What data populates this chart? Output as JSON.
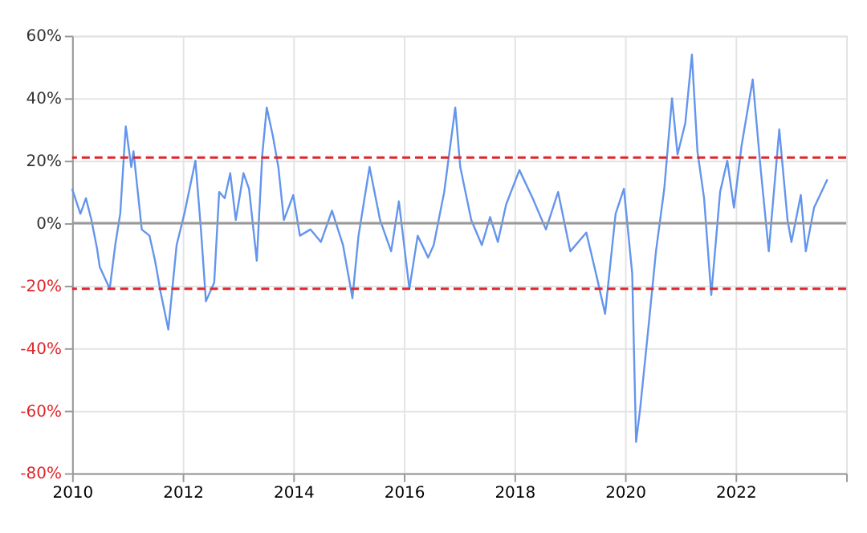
{
  "chart_data": {
    "type": "line",
    "x": [
      2010.0,
      2010.15,
      2010.25,
      2010.35,
      2010.45,
      2010.5,
      2010.68,
      2010.78,
      2010.87,
      2010.97,
      2011.07,
      2011.11,
      2011.26,
      2011.4,
      2011.5,
      2011.6,
      2011.74,
      2011.89,
      2012.03,
      2012.23,
      2012.33,
      2012.42,
      2012.57,
      2012.66,
      2012.76,
      2012.86,
      2012.96,
      2013.1,
      2013.2,
      2013.34,
      2013.44,
      2013.52,
      2013.63,
      2013.73,
      2013.83,
      2014.0,
      2014.12,
      2014.31,
      2014.5,
      2014.7,
      2014.9,
      2015.07,
      2015.18,
      2015.38,
      2015.57,
      2015.77,
      2015.91,
      2016.1,
      2016.25,
      2016.44,
      2016.54,
      2016.73,
      2016.93,
      2017.02,
      2017.22,
      2017.41,
      2017.56,
      2017.7,
      2017.85,
      2018.09,
      2018.33,
      2018.57,
      2018.79,
      2019.01,
      2019.3,
      2019.5,
      2019.64,
      2019.83,
      2019.98,
      2020.13,
      2020.2,
      2020.27,
      2020.42,
      2020.56,
      2020.71,
      2020.85,
      2020.95,
      2021.09,
      2021.21,
      2021.31,
      2021.43,
      2021.56,
      2021.72,
      2021.85,
      2021.97,
      2022.11,
      2022.31,
      2022.45,
      2022.6,
      2022.79,
      2022.94,
      2023.01,
      2023.18,
      2023.27,
      2023.42,
      2023.66
    ],
    "series": [
      {
        "color": "#6495ed",
        "values": [
          11,
          3,
          8,
          1,
          -8,
          -14,
          -21,
          -7,
          3,
          31,
          18,
          23,
          -2,
          -4,
          -12,
          -22,
          -34,
          -7,
          3,
          20,
          -2,
          -25,
          -19,
          10,
          8,
          16,
          1,
          16,
          11,
          -12,
          22,
          37,
          28,
          18,
          1,
          9,
          -4,
          -2,
          -6,
          4,
          -7,
          -24,
          -4,
          18,
          1,
          -9,
          7,
          -21,
          -4,
          -11,
          -7,
          10,
          37,
          18,
          1,
          -7,
          2,
          -6,
          6,
          17,
          8,
          -2,
          10,
          -9,
          -3,
          -18,
          -29,
          3,
          11,
          -16,
          -70,
          -60,
          -34,
          -9,
          11,
          40,
          22,
          32,
          54,
          23,
          8,
          -23,
          10,
          20,
          5,
          25,
          46,
          18,
          -9,
          30,
          1,
          -6,
          9,
          -9,
          5,
          14
        ]
      }
    ],
    "xlim": [
      2010,
      2024
    ],
    "xticks": [
      2010,
      2012,
      2014,
      2016,
      2018,
      2020,
      2022,
      {
        "value": 2024,
        "label": null
      }
    ],
    "ylim": [
      -80,
      60
    ],
    "yticks": [
      {
        "value": -80,
        "label": "-80%"
      },
      {
        "value": -60,
        "label": "-60%"
      },
      {
        "value": -40,
        "label": "-40%"
      },
      {
        "value": -20,
        "label": "-20%"
      },
      {
        "value": 0,
        "label": "0%"
      },
      {
        "value": 20,
        "label": "20%"
      },
      {
        "value": 40,
        "label": "40%"
      },
      {
        "value": 60,
        "label": "60%"
      }
    ],
    "ref_lines": [
      {
        "axis": "y",
        "value": 0,
        "color": "#999999",
        "line_style": "solid"
      },
      {
        "axis": "y",
        "value": 21,
        "color": "#e0262b",
        "line_style": "dashed"
      },
      {
        "axis": "y",
        "value": -21,
        "color": "#e0262b",
        "line_style": "dashed"
      }
    ],
    "grid": true,
    "marker": "none",
    "line_style": "solid"
  }
}
